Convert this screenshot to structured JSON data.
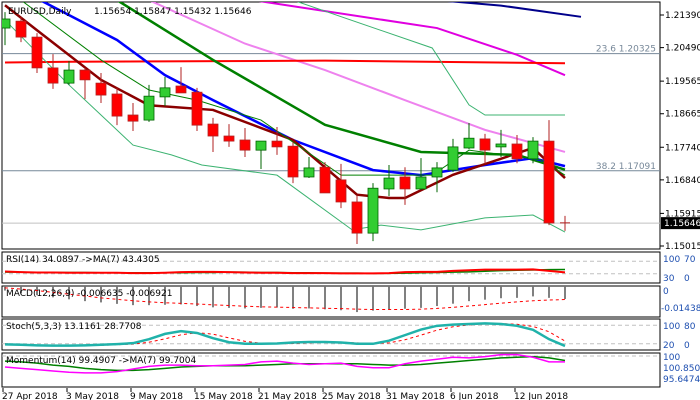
{
  "header": {
    "symbol": "EURUSD,Daily",
    "ohlc": "1.15654 1.15847 1.15432 1.15646"
  },
  "price_axis": [
    "1.21390",
    "1.20490",
    "1.19565",
    "1.18665",
    "1.17740",
    "1.16840",
    "1.15915",
    "1.15015"
  ],
  "current_price": "1.15646",
  "fib": [
    {
      "label": "23.6 1.20325",
      "price": 1.20325
    },
    {
      "label": "38.2 1.17091",
      "price": 1.17091
    }
  ],
  "date_axis": [
    {
      "label": "27 Apr 2018",
      "index": 0
    },
    {
      "label": "3 May 2018",
      "index": 4
    },
    {
      "label": "9 May 2018",
      "index": 8
    },
    {
      "label": "15 May 2018",
      "index": 12
    },
    {
      "label": "21 May 2018",
      "index": 16
    },
    {
      "label": "25 May 2018",
      "index": 20
    },
    {
      "label": "31 May 2018",
      "index": 24
    },
    {
      "label": "6 Jun 2018",
      "index": 28
    },
    {
      "label": "12 Jun 2018",
      "index": 32
    }
  ],
  "colors": {
    "bull": "#32cd32",
    "bear": "#ff0000",
    "bull_border": "#006400",
    "bear_wick": "#b22222"
  },
  "chart_data": {
    "type": "candlestick",
    "title": "EURUSD,Daily",
    "ylim": [
      1.15015,
      1.2139
    ],
    "open": [
      1.2103,
      1.2122,
      1.2078,
      1.1993,
      1.1951,
      1.1987,
      1.1951,
      1.1921,
      1.1863,
      1.1849,
      1.1913,
      1.1943,
      1.1926,
      1.1838,
      1.1805,
      1.1794,
      1.1766,
      1.1791,
      1.1777,
      1.1692,
      1.1719,
      1.1684,
      1.1623,
      1.1537,
      1.1659,
      1.1692,
      1.1659,
      1.1692,
      1.1711,
      1.1772,
      1.1797,
      1.1775,
      1.1783,
      1.1742,
      1.1791,
      1.15654
    ],
    "high": [
      1.2147,
      1.2133,
      1.2089,
      1.2031,
      1.2012,
      1.1993,
      1.1979,
      1.1938,
      1.1896,
      1.1946,
      1.1968,
      1.1995,
      1.1938,
      1.1855,
      1.1838,
      1.1827,
      1.1791,
      1.183,
      1.1788,
      1.1747,
      1.1733,
      1.1728,
      1.1642,
      1.1675,
      1.1725,
      1.1719,
      1.1744,
      1.1733,
      1.1797,
      1.1841,
      1.1811,
      1.1822,
      1.1808,
      1.1802,
      1.1849,
      1.15847
    ],
    "low": [
      1.2056,
      1.2064,
      1.1979,
      1.1935,
      1.1946,
      1.1907,
      1.1896,
      1.1835,
      1.1819,
      1.1844,
      1.1888,
      1.1924,
      1.1819,
      1.1761,
      1.1775,
      1.1747,
      1.1714,
      1.1753,
      1.1675,
      1.1689,
      1.1648,
      1.1606,
      1.1507,
      1.1515,
      1.1639,
      1.1615,
      1.1656,
      1.165,
      1.1706,
      1.1769,
      1.1728,
      1.1747,
      1.173,
      1.173,
      1.1559,
      1.15432
    ],
    "close": [
      1.2128,
      1.2078,
      1.1993,
      1.1951,
      1.1987,
      1.196,
      1.1918,
      1.186,
      1.1846,
      1.1915,
      1.1938,
      1.1924,
      1.1835,
      1.1805,
      1.1791,
      1.1766,
      1.1791,
      1.1775,
      1.1692,
      1.1717,
      1.1648,
      1.1623,
      1.1537,
      1.1661,
      1.1689,
      1.1659,
      1.1692,
      1.1717,
      1.1775,
      1.1799,
      1.1766,
      1.1783,
      1.1742,
      1.1791,
      1.1565,
      1.15646
    ],
    "overlays": [
      {
        "name": "ma-navy",
        "color": "#00008b",
        "width": 2,
        "points": [
          [
            27,
            1.218
          ],
          [
            31,
            1.2165
          ],
          [
            36,
            1.2134
          ]
        ]
      },
      {
        "name": "ma-magenta",
        "color": "#e000e0",
        "width": 2,
        "points": [
          [
            15.5,
            1.218
          ],
          [
            27,
            1.2103
          ],
          [
            32,
            1.2029
          ],
          [
            35,
            1.1973
          ]
        ]
      },
      {
        "name": "ma-violet",
        "color": "#ee82ee",
        "width": 2,
        "points": [
          [
            9,
            1.218
          ],
          [
            15,
            1.206
          ],
          [
            20,
            1.1987
          ],
          [
            25,
            1.1904
          ],
          [
            30,
            1.1822
          ],
          [
            35,
            1.1761
          ]
        ]
      },
      {
        "name": "ma-red-flat",
        "color": "#ff0000",
        "width": 2,
        "points": [
          [
            0,
            1.2008
          ],
          [
            4,
            1.201
          ],
          [
            20,
            1.2013
          ],
          [
            35,
            1.2006
          ]
        ]
      },
      {
        "name": "ma-green",
        "color": "#008000",
        "width": 2.5,
        "points": [
          [
            7,
            1.218
          ],
          [
            13,
            1.2015
          ],
          [
            20,
            1.1836
          ],
          [
            26,
            1.1761
          ],
          [
            32,
            1.1753
          ],
          [
            35,
            1.1712
          ]
        ]
      },
      {
        "name": "ma-blue",
        "color": "#0000ff",
        "width": 2.5,
        "points": [
          [
            2.2,
            1.218
          ],
          [
            7,
            1.207
          ],
          [
            10,
            1.1973
          ],
          [
            13,
            1.1904
          ],
          [
            18,
            1.1794
          ],
          [
            23,
            1.1711
          ],
          [
            26,
            1.1697
          ],
          [
            30,
            1.1725
          ],
          [
            33,
            1.1744
          ],
          [
            35,
            1.1722
          ]
        ]
      },
      {
        "name": "ma-darkred",
        "color": "#8b0000",
        "width": 2.5,
        "points": [
          [
            0,
            1.2166
          ],
          [
            2,
            1.2097
          ],
          [
            6,
            1.196
          ],
          [
            9,
            1.189
          ],
          [
            13,
            1.1877
          ],
          [
            18,
            1.1794
          ],
          [
            22,
            1.1643
          ],
          [
            24,
            1.1634
          ],
          [
            25,
            1.1634
          ],
          [
            28,
            1.1698
          ],
          [
            33,
            1.1772
          ],
          [
            35,
            1.1689
          ]
        ]
      },
      {
        "name": "band-upper",
        "color": "#3cb371",
        "width": 1,
        "points": [
          [
            18,
            1.218
          ],
          [
            26.7,
            1.2048
          ],
          [
            29,
            1.1891
          ],
          [
            30,
            1.1863
          ],
          [
            35,
            1.1863
          ]
        ]
      },
      {
        "name": "band-middle",
        "color": "#008000",
        "width": 1,
        "points": [
          [
            1,
            1.218
          ],
          [
            6,
            1.2015
          ],
          [
            9,
            1.1932
          ],
          [
            12,
            1.1904
          ],
          [
            16,
            1.1849
          ],
          [
            21,
            1.1697
          ],
          [
            23.5,
            1.1697
          ],
          [
            26.7,
            1.1697
          ],
          [
            29,
            1.1766
          ],
          [
            33.5,
            1.1739
          ],
          [
            35,
            1.1697
          ]
        ]
      },
      {
        "name": "band-lower",
        "color": "#3cb371",
        "width": 1,
        "points": [
          [
            0,
            1.2125
          ],
          [
            4,
            1.1946
          ],
          [
            6,
            1.1863
          ],
          [
            8,
            1.178
          ],
          [
            10.4,
            1.1753
          ],
          [
            12.3,
            1.1725
          ],
          [
            17,
            1.1697
          ],
          [
            21.7,
            1.1546
          ],
          [
            23.5,
            1.1559
          ],
          [
            26,
            1.1546
          ],
          [
            30,
            1.1579
          ],
          [
            33,
            1.1587
          ],
          [
            35,
            1.154
          ]
        ]
      }
    ],
    "indicators": {
      "rsi": {
        "label": "RSI(14) 34.0897  ->MA(7) 43.4305",
        "levels": [
          "100",
          "70",
          "30",
          "0"
        ],
        "values": [
          37,
          35,
          34,
          34,
          33,
          33,
          33,
          33,
          32,
          32,
          33,
          35,
          36,
          36,
          35,
          34,
          33,
          33,
          32,
          32,
          32,
          31,
          31,
          31,
          32,
          35,
          36,
          36,
          39,
          41,
          43,
          43,
          43,
          44,
          39,
          34.0897
        ],
        "ma": [
          35,
          35,
          34,
          34,
          34,
          34,
          33,
          33,
          33,
          33,
          33,
          33,
          34,
          34,
          35,
          35,
          34,
          34,
          33,
          33,
          32,
          32,
          32,
          31,
          31,
          32,
          33,
          34,
          35,
          36,
          38,
          40,
          41,
          42,
          43,
          43.4305
        ]
      },
      "macd": {
        "label": "MACD(12,26,9) -0.006635 -0.006921",
        "levels": [
          "0",
          "-0.014386"
        ],
        "values": [
          -0.002,
          -0.0035,
          -0.0045,
          -0.0057,
          -0.0068,
          -0.0078,
          -0.0085,
          -0.0093,
          -0.01,
          -0.01,
          -0.0098,
          -0.0096,
          -0.0105,
          -0.0112,
          -0.0115,
          -0.0118,
          -0.0115,
          -0.0113,
          -0.012,
          -0.0118,
          -0.0123,
          -0.0128,
          -0.0138,
          -0.013,
          -0.0124,
          -0.012,
          -0.0115,
          -0.0105,
          -0.0092,
          -0.0078,
          -0.007,
          -0.0062,
          -0.006,
          -0.0052,
          -0.006,
          -0.006635
        ],
        "signal": [
          -0.0005,
          -0.0012,
          -0.002,
          -0.003,
          -0.004,
          -0.005,
          -0.006,
          -0.0068,
          -0.0076,
          -0.0082,
          -0.0087,
          -0.009,
          -0.0094,
          -0.0098,
          -0.0102,
          -0.0106,
          -0.0109,
          -0.0111,
          -0.0113,
          -0.0115,
          -0.0117,
          -0.0119,
          -0.0122,
          -0.0124,
          -0.0124,
          -0.0124,
          -0.0122,
          -0.0118,
          -0.0112,
          -0.0105,
          -0.0097,
          -0.0089,
          -0.0082,
          -0.0076,
          -0.0072,
          -0.006921
        ]
      },
      "stoch": {
        "label": "Stoch(5,3,3) 13.1161 28.7708",
        "levels": [
          "100",
          "80",
          "20",
          "0"
        ],
        "main": [
          18,
          17,
          15,
          14,
          14,
          15,
          17,
          19,
          22,
          35,
          52,
          61,
          55,
          38,
          25,
          20,
          20,
          21,
          24,
          26,
          26,
          24,
          20,
          20,
          30,
          48,
          66,
          78,
          82,
          84,
          86,
          84,
          78,
          65,
          35,
          13.1161
        ],
        "signal": [
          20,
          18,
          16,
          15,
          14,
          14,
          15,
          17,
          19,
          25,
          36,
          49,
          56,
          51,
          39,
          28,
          22,
          20,
          21,
          23,
          25,
          25,
          23,
          21,
          23,
          33,
          48,
          64,
          75,
          81,
          84,
          85,
          83,
          76,
          59,
          28.7708
        ]
      },
      "momentum": {
        "label": "Momentum(14) 99.4907  ->MA(7) 99.7004",
        "levels": [
          "100",
          "100.8509",
          "95.6474"
        ],
        "values": [
          98.7,
          98.5,
          98.3,
          98.1,
          97.9,
          97.8,
          97.8,
          98.0,
          98.4,
          98.8,
          99.0,
          99.0,
          98.9,
          98.9,
          99.0,
          99.1,
          99.5,
          99.6,
          99.3,
          99.1,
          99.2,
          99.3,
          98.8,
          98.6,
          98.6,
          99.2,
          99.6,
          99.9,
          100.2,
          100.1,
          100.3,
          100.6,
          100.6,
          100.2,
          99.5,
          99.4907
        ],
        "ma": [
          99.6,
          99.5,
          99.3,
          99.0,
          98.8,
          98.5,
          98.3,
          98.2,
          98.2,
          98.3,
          98.5,
          98.7,
          98.8,
          98.9,
          98.9,
          98.9,
          99.0,
          99.1,
          99.2,
          99.2,
          99.2,
          99.2,
          99.2,
          99.1,
          99.0,
          99.0,
          99.1,
          99.3,
          99.5,
          99.7,
          99.9,
          100.1,
          100.2,
          100.3,
          100.1,
          99.7004
        ]
      }
    }
  }
}
